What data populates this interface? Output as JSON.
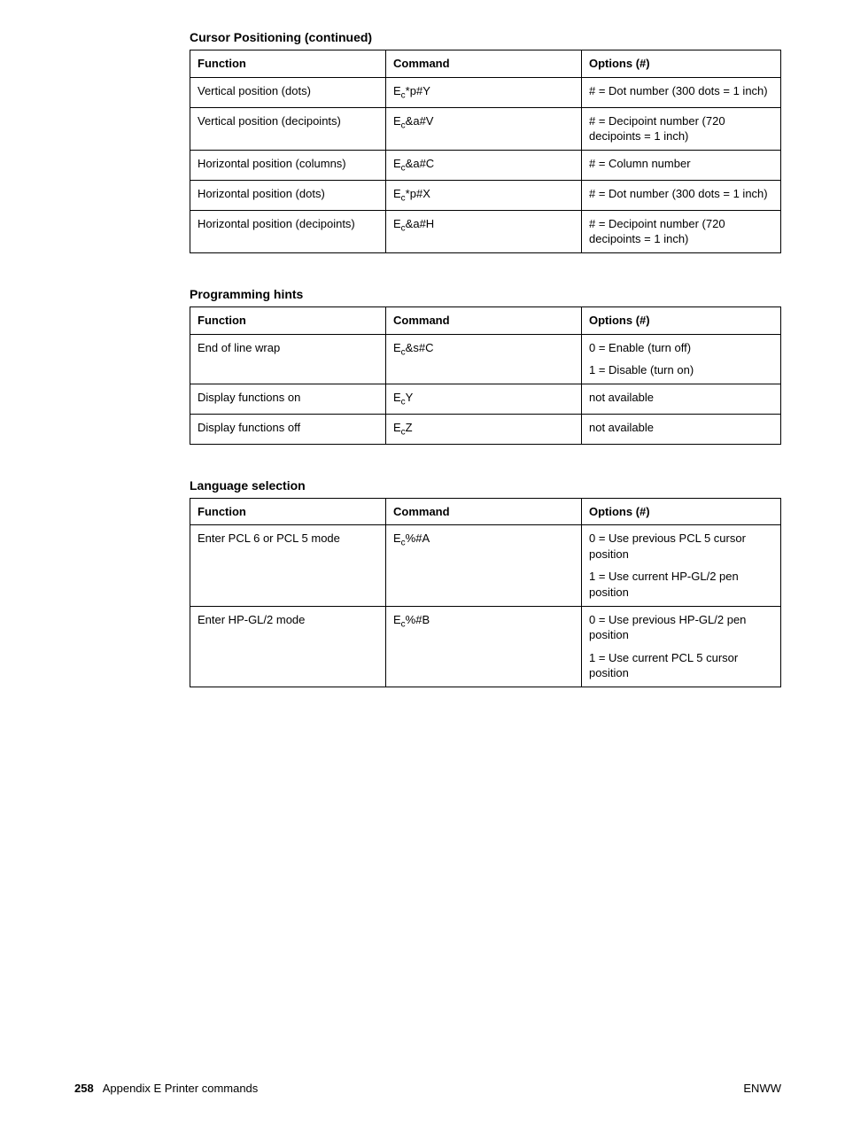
{
  "sections": [
    {
      "title": "Cursor Positioning (continued)",
      "headers": [
        "Function",
        "Command",
        "Options (#)"
      ],
      "rows": [
        {
          "function": "Vertical position (dots)",
          "cmd_prefix": "E",
          "cmd_sub": "c",
          "cmd_rest": "*p#Y",
          "options": [
            "# = Dot number (300 dots = 1 inch)"
          ]
        },
        {
          "function": "Vertical position (decipoints)",
          "cmd_prefix": "E",
          "cmd_sub": "c",
          "cmd_rest": "&a#V",
          "options": [
            "# = Decipoint number (720 decipoints = 1 inch)"
          ]
        },
        {
          "function": "Horizontal position (columns)",
          "cmd_prefix": "E",
          "cmd_sub": "c",
          "cmd_rest": "&a#C",
          "options": [
            "# = Column number"
          ]
        },
        {
          "function": "Horizontal position (dots)",
          "cmd_prefix": "E",
          "cmd_sub": "c",
          "cmd_rest": "*p#X",
          "options": [
            "# = Dot number (300 dots = 1 inch)"
          ]
        },
        {
          "function": "Horizontal position (decipoints)",
          "cmd_prefix": "E",
          "cmd_sub": "c",
          "cmd_rest": "&a#H",
          "options": [
            "# = Decipoint number (720 decipoints = 1 inch)"
          ]
        }
      ]
    },
    {
      "title": "Programming hints",
      "headers": [
        "Function",
        "Command",
        "Options (#)"
      ],
      "rows": [
        {
          "function": "End of line wrap",
          "cmd_prefix": "E",
          "cmd_sub": "c",
          "cmd_rest": "&s#C",
          "options": [
            "0 = Enable (turn off)",
            "1 = Disable (turn on)"
          ]
        },
        {
          "function": "Display functions on",
          "cmd_prefix": "E",
          "cmd_sub": "c",
          "cmd_rest": "Y",
          "options": [
            "not available"
          ]
        },
        {
          "function": "Display functions off",
          "cmd_prefix": "E",
          "cmd_sub": "c",
          "cmd_rest": "Z",
          "options": [
            "not available"
          ]
        }
      ]
    },
    {
      "title": "Language selection",
      "headers": [
        "Function",
        "Command",
        "Options (#)"
      ],
      "rows": [
        {
          "function": "Enter PCL 6 or PCL 5 mode",
          "cmd_prefix": "E",
          "cmd_sub": "c",
          "cmd_rest": "%#A",
          "options": [
            "0 = Use previous PCL 5 cursor position",
            "1 = Use current HP-GL/2 pen position"
          ]
        },
        {
          "function": "Enter HP-GL/2 mode",
          "cmd_prefix": "E",
          "cmd_sub": "c",
          "cmd_rest": "%#B",
          "options": [
            "0 = Use previous HP-GL/2 pen position",
            "1 = Use current PCL 5 cursor position"
          ]
        }
      ]
    }
  ],
  "footer": {
    "page_number": "258",
    "appendix": "Appendix E  Printer commands",
    "right": "ENWW"
  }
}
